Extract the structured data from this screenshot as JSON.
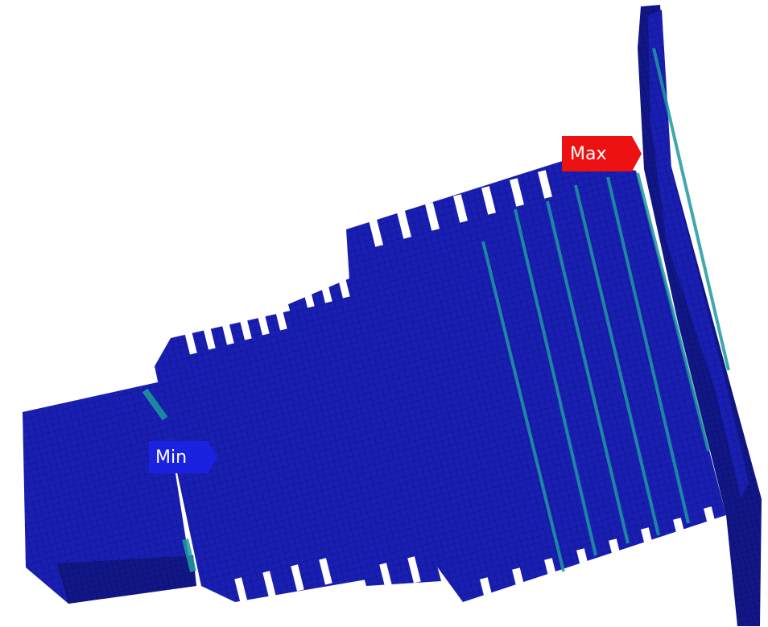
{
  "labels": {
    "min": "Min",
    "max": "Max"
  }
}
